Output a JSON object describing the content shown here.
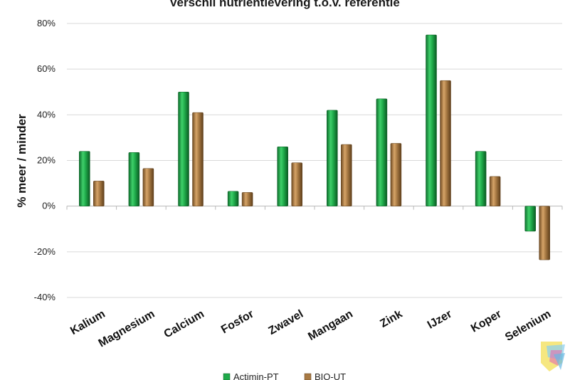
{
  "chart_data": {
    "type": "bar",
    "title": "Verschil nutriëntlevering t.o.v. referentie",
    "ylabel": "% meer / minder",
    "xlabel": "",
    "categories": [
      "Kalium",
      "Magnesium",
      "Calcium",
      "Fosfor",
      "Zwavel",
      "Mangaan",
      "Zink",
      "IJzer",
      "Koper",
      "Selenium"
    ],
    "series": [
      {
        "name": "Actimin-PT",
        "color": "#1faa4a",
        "values": [
          24,
          23.5,
          50,
          6.5,
          26,
          42,
          47,
          75,
          24,
          -11
        ]
      },
      {
        "name": "BIO-UT",
        "color": "#a87a44",
        "values": [
          11,
          16.5,
          41,
          6,
          19,
          27,
          27.5,
          55,
          13,
          -23.5
        ]
      }
    ],
    "ylim": [
      -40,
      80
    ],
    "yticks": [
      80,
      60,
      40,
      20,
      0,
      -20,
      -40
    ],
    "ytick_labels": [
      "80%",
      "60%",
      "40%",
      "20%",
      "0%",
      "-20%",
      "-40%"
    ],
    "grid": true,
    "legend_position": "bottom"
  }
}
